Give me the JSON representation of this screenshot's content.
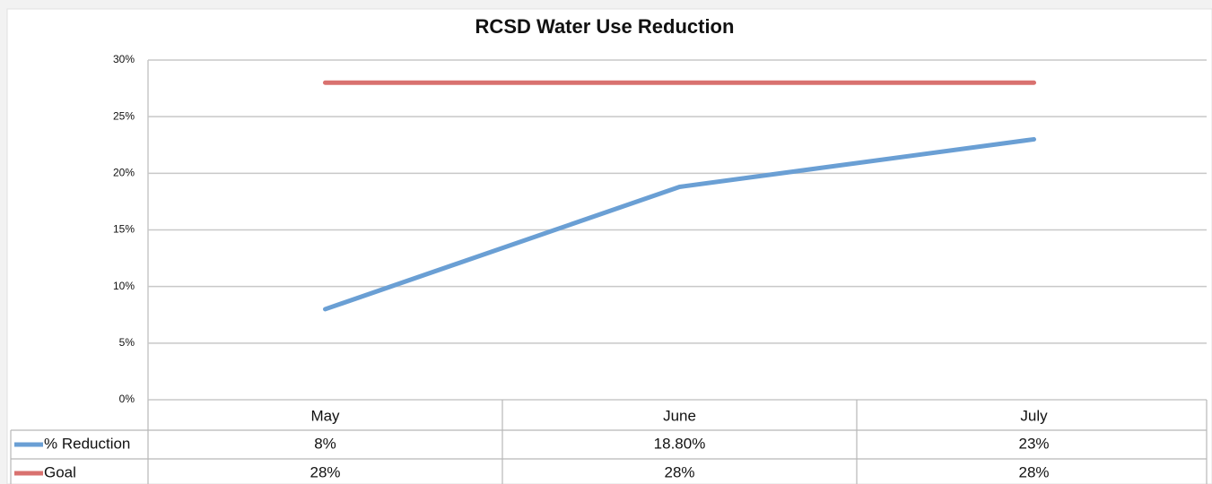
{
  "chart_data": {
    "type": "line",
    "title": "RCSD Water Use Reduction",
    "categories": [
      "May",
      "June",
      "July"
    ],
    "series": [
      {
        "name": "% Reduction",
        "color": "#6a9fd4",
        "values": [
          8,
          18.8,
          23
        ],
        "value_labels": [
          "8%",
          "18.80%",
          "23%"
        ]
      },
      {
        "name": "Goal",
        "color": "#d9716f",
        "values": [
          28,
          28,
          28
        ],
        "value_labels": [
          "28%",
          "28%",
          "28%"
        ]
      }
    ],
    "ylim": [
      0,
      30
    ],
    "yticks": [
      {
        "value": 0,
        "label": "0%"
      },
      {
        "value": 5,
        "label": "5%"
      },
      {
        "value": 10,
        "label": "10%"
      },
      {
        "value": 15,
        "label": "15%"
      },
      {
        "value": 20,
        "label": "20%"
      },
      {
        "value": 25,
        "label": "25%"
      },
      {
        "value": 30,
        "label": "30%"
      }
    ],
    "grid": true,
    "data_table": true
  }
}
